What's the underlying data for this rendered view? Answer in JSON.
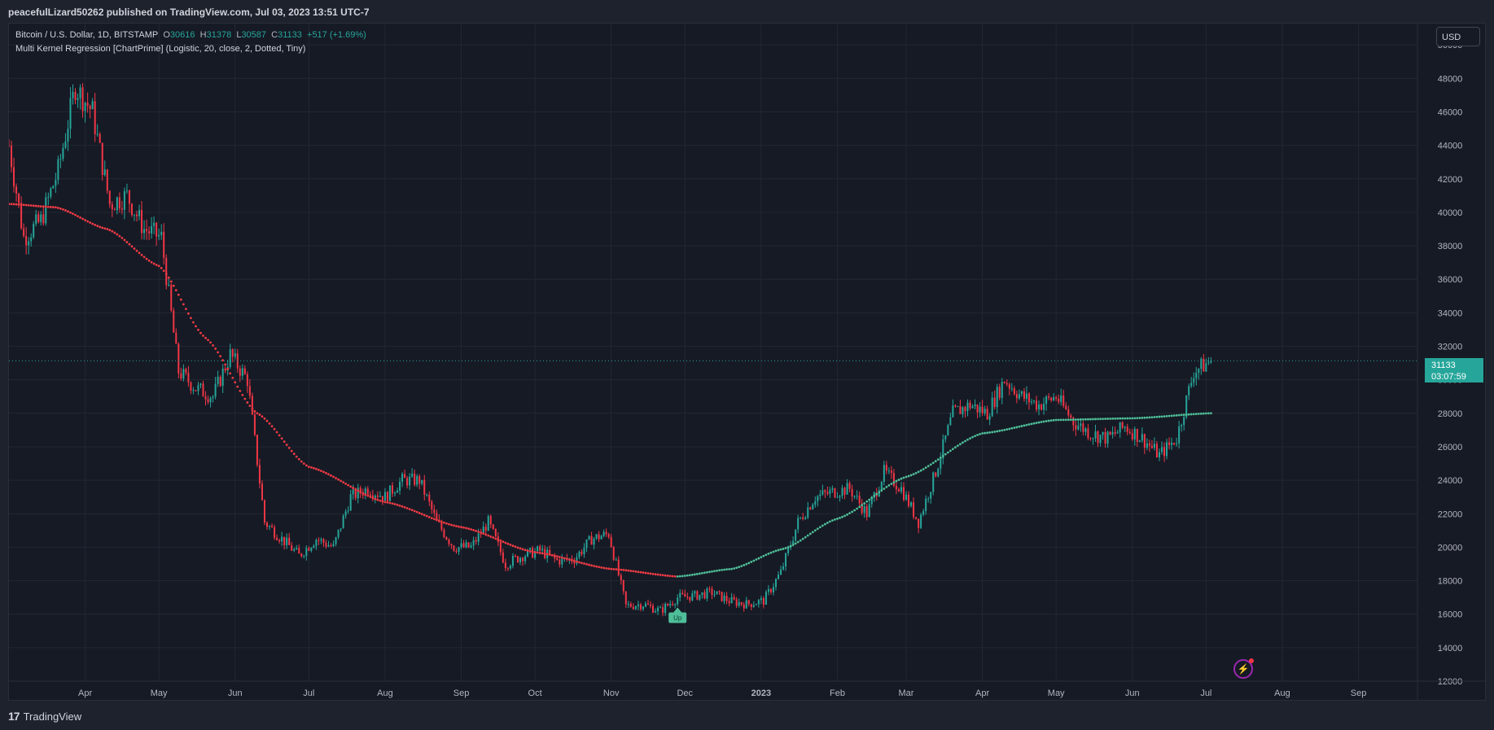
{
  "header": {
    "publish_text": "peacefulLizard50262 published on TradingView.com, Jul 03, 2023 13:51 UTC-7"
  },
  "legend": {
    "symbol": "Bitcoin / U.S. Dollar, 1D, BITSTAMP",
    "o_label": "O",
    "o_value": "30616",
    "h_label": "H",
    "h_value": "31378",
    "l_label": "L",
    "l_value": "30587",
    "c_label": "C",
    "c_value": "31133",
    "change": "+517 (+1.69%)",
    "indicator": "Multi Kernel Regression [ChartPrime] (Logistic, 20, close, 2, Dotted, Tiny)"
  },
  "currency_button": "USD",
  "price_tag": {
    "price": "31133",
    "countdown": "03:07:59"
  },
  "brand": "TradingView",
  "signal_label": "Up",
  "colors": {
    "up": "#26a69a",
    "down": "#f23645",
    "regression_up": "#4fbf99",
    "regression_down": "#ef3b44",
    "grid": "#232733",
    "background": "#161a25"
  },
  "chart_data": {
    "type": "candlestick",
    "title": "Bitcoin / U.S. Dollar, 1D, BITSTAMP",
    "ylim": [
      12000,
      52000
    ],
    "y_ticks": [
      12000,
      14000,
      16000,
      18000,
      20000,
      22000,
      24000,
      26000,
      28000,
      30000,
      32000,
      34000,
      36000,
      38000,
      40000,
      42000,
      44000,
      46000,
      48000,
      50000,
      52000
    ],
    "x_ticks": [
      {
        "label": "Apr",
        "date": "2022-04-01"
      },
      {
        "label": "May",
        "date": "2022-05-01"
      },
      {
        "label": "Jun",
        "date": "2022-06-01"
      },
      {
        "label": "Jul",
        "date": "2022-07-01"
      },
      {
        "label": "Aug",
        "date": "2022-08-01"
      },
      {
        "label": "Sep",
        "date": "2022-09-01"
      },
      {
        "label": "Oct",
        "date": "2022-10-01"
      },
      {
        "label": "Nov",
        "date": "2022-11-01"
      },
      {
        "label": "Dec",
        "date": "2022-12-01"
      },
      {
        "label": "2023",
        "date": "2023-01-01"
      },
      {
        "label": "Feb",
        "date": "2023-02-01"
      },
      {
        "label": "Mar",
        "date": "2023-03-01"
      },
      {
        "label": "Apr",
        "date": "2023-04-01"
      },
      {
        "label": "May",
        "date": "2023-05-01"
      },
      {
        "label": "Jun",
        "date": "2023-06-01"
      },
      {
        "label": "Jul",
        "date": "2023-07-01"
      },
      {
        "label": "Aug",
        "date": "2023-08-01"
      },
      {
        "label": "Sep",
        "date": "2023-09-01"
      }
    ],
    "x_range": [
      "2022-03-01",
      "2023-09-25"
    ],
    "last_date": "2023-07-03",
    "last_price": 31133,
    "price_series": [
      {
        "date": "2022-03-01",
        "price": 44000
      },
      {
        "date": "2022-03-07",
        "price": 38500
      },
      {
        "date": "2022-03-14",
        "price": 39500
      },
      {
        "date": "2022-03-21",
        "price": 42500
      },
      {
        "date": "2022-03-28",
        "price": 47500
      },
      {
        "date": "2022-04-04",
        "price": 46000
      },
      {
        "date": "2022-04-11",
        "price": 40500
      },
      {
        "date": "2022-04-18",
        "price": 41000
      },
      {
        "date": "2022-04-25",
        "price": 39000
      },
      {
        "date": "2022-05-02",
        "price": 38500
      },
      {
        "date": "2022-05-09",
        "price": 30500
      },
      {
        "date": "2022-05-16",
        "price": 29500
      },
      {
        "date": "2022-05-23",
        "price": 29000
      },
      {
        "date": "2022-05-30",
        "price": 31500
      },
      {
        "date": "2022-06-06",
        "price": 30000
      },
      {
        "date": "2022-06-13",
        "price": 21500
      },
      {
        "date": "2022-06-20",
        "price": 20500
      },
      {
        "date": "2022-06-27",
        "price": 19500
      },
      {
        "date": "2022-07-04",
        "price": 20500
      },
      {
        "date": "2022-07-11",
        "price": 20000
      },
      {
        "date": "2022-07-18",
        "price": 23000
      },
      {
        "date": "2022-07-25",
        "price": 23500
      },
      {
        "date": "2022-08-01",
        "price": 23000
      },
      {
        "date": "2022-08-08",
        "price": 24000
      },
      {
        "date": "2022-08-15",
        "price": 24000
      },
      {
        "date": "2022-08-22",
        "price": 21500
      },
      {
        "date": "2022-08-29",
        "price": 20000
      },
      {
        "date": "2022-09-05",
        "price": 20000
      },
      {
        "date": "2022-09-12",
        "price": 21500
      },
      {
        "date": "2022-09-19",
        "price": 19000
      },
      {
        "date": "2022-09-26",
        "price": 19500
      },
      {
        "date": "2022-10-03",
        "price": 19800
      },
      {
        "date": "2022-10-10",
        "price": 19200
      },
      {
        "date": "2022-10-17",
        "price": 19300
      },
      {
        "date": "2022-10-24",
        "price": 20500
      },
      {
        "date": "2022-10-31",
        "price": 20800
      },
      {
        "date": "2022-11-07",
        "price": 16500
      },
      {
        "date": "2022-11-14",
        "price": 16600
      },
      {
        "date": "2022-11-21",
        "price": 16200
      },
      {
        "date": "2022-11-28",
        "price": 17000
      },
      {
        "date": "2022-12-05",
        "price": 17100
      },
      {
        "date": "2022-12-12",
        "price": 17300
      },
      {
        "date": "2022-12-19",
        "price": 16800
      },
      {
        "date": "2022-12-26",
        "price": 16600
      },
      {
        "date": "2023-01-02",
        "price": 16800
      },
      {
        "date": "2023-01-09",
        "price": 18500
      },
      {
        "date": "2023-01-16",
        "price": 21500
      },
      {
        "date": "2023-01-23",
        "price": 23000
      },
      {
        "date": "2023-01-30",
        "price": 23300
      },
      {
        "date": "2023-02-06",
        "price": 23500
      },
      {
        "date": "2023-02-13",
        "price": 22000
      },
      {
        "date": "2023-02-20",
        "price": 24500
      },
      {
        "date": "2023-02-27",
        "price": 23500
      },
      {
        "date": "2023-03-06",
        "price": 21500
      },
      {
        "date": "2023-03-13",
        "price": 24500
      },
      {
        "date": "2023-03-20",
        "price": 28000
      },
      {
        "date": "2023-03-27",
        "price": 28500
      },
      {
        "date": "2023-04-03",
        "price": 28000
      },
      {
        "date": "2023-04-10",
        "price": 30000
      },
      {
        "date": "2023-04-17",
        "price": 29000
      },
      {
        "date": "2023-04-24",
        "price": 28500
      },
      {
        "date": "2023-05-01",
        "price": 29000
      },
      {
        "date": "2023-05-08",
        "price": 27500
      },
      {
        "date": "2023-05-15",
        "price": 26800
      },
      {
        "date": "2023-05-22",
        "price": 26500
      },
      {
        "date": "2023-05-29",
        "price": 27200
      },
      {
        "date": "2023-06-05",
        "price": 26500
      },
      {
        "date": "2023-06-12",
        "price": 25500
      },
      {
        "date": "2023-06-19",
        "price": 26500
      },
      {
        "date": "2023-06-26",
        "price": 30500
      },
      {
        "date": "2023-07-03",
        "price": 31133
      }
    ],
    "regression_series": [
      {
        "date": "2022-03-01",
        "value": 40500
      },
      {
        "date": "2022-03-20",
        "value": 40300
      },
      {
        "date": "2022-04-10",
        "value": 39000
      },
      {
        "date": "2022-05-01",
        "value": 36800
      },
      {
        "date": "2022-05-20",
        "value": 32500
      },
      {
        "date": "2022-06-10",
        "value": 28000
      },
      {
        "date": "2022-07-01",
        "value": 24800
      },
      {
        "date": "2022-08-01",
        "value": 22700
      },
      {
        "date": "2022-09-01",
        "value": 21200
      },
      {
        "date": "2022-10-01",
        "value": 19700
      },
      {
        "date": "2022-11-01",
        "value": 18700
      },
      {
        "date": "2022-11-28",
        "value": 18250
      },
      {
        "date": "2022-12-20",
        "value": 18700
      },
      {
        "date": "2023-01-10",
        "value": 19900
      },
      {
        "date": "2023-02-01",
        "value": 21700
      },
      {
        "date": "2023-03-01",
        "value": 24200
      },
      {
        "date": "2023-04-01",
        "value": 26800
      },
      {
        "date": "2023-05-01",
        "value": 27600
      },
      {
        "date": "2023-06-01",
        "value": 27700
      },
      {
        "date": "2023-07-03",
        "value": 28000
      }
    ],
    "regression_turn_date": "2022-11-28",
    "signal": {
      "date": "2022-11-28",
      "price": 16400,
      "label": "Up"
    }
  }
}
